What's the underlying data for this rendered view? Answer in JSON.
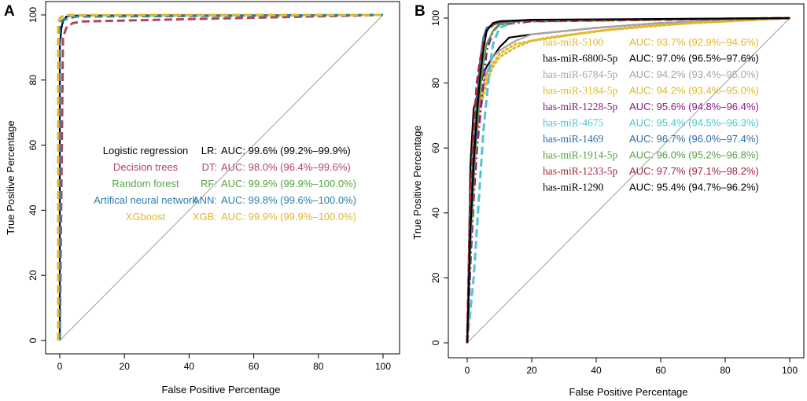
{
  "chart_data": [
    {
      "panel_label": "A",
      "type": "line",
      "xlabel": "False Positive Percentage",
      "ylabel": "True Positive Percentage",
      "xlim": [
        0,
        100
      ],
      "ylim": [
        0,
        100
      ],
      "x_ticks": [
        "0",
        "20",
        "40",
        "60",
        "80",
        "100"
      ],
      "y_ticks": [
        "0",
        "20",
        "40",
        "60",
        "80",
        "100"
      ],
      "legend": {
        "placement": "center",
        "entries": [
          {
            "name": "Logistic regression",
            "abbr": "LR:",
            "auc": "AUC: 99.6% (99.2%–99.9%)",
            "color": "#000000"
          },
          {
            "name": "Decision trees",
            "abbr": "DT:",
            "auc": "AUC: 98.0% (96.4%–99.6%)",
            "color": "#b5455e"
          },
          {
            "name": "Random forest",
            "abbr": "RF:",
            "auc": "AUC: 99.9% (99.9%–100.0%)",
            "color": "#57a345"
          },
          {
            "name": "Artifical neural network",
            "abbr": "ANN:",
            "auc": "AUC: 99.8% (99.6%–100.0%)",
            "color": "#2b7fa8"
          },
          {
            "name": "XGboost",
            "abbr": "XGB:",
            "auc": "AUC: 99.9% (99.9%–100.0%)",
            "color": "#e3b829"
          }
        ]
      },
      "series": [
        {
          "name": "LR",
          "color": "#000000",
          "dash": "solid",
          "x": [
            0,
            0,
            0.5,
            1,
            2,
            4,
            100
          ],
          "y": [
            0,
            90,
            96,
            98,
            99.5,
            99.8,
            100
          ]
        },
        {
          "name": "DT",
          "color": "#b5455e",
          "dash": "dash",
          "x": [
            0,
            1,
            2,
            4,
            7,
            100
          ],
          "y": [
            0,
            93,
            96,
            97.5,
            98,
            100
          ]
        },
        {
          "name": "RF",
          "color": "#57a345",
          "dash": "dash",
          "x": [
            0,
            0,
            1,
            2,
            100
          ],
          "y": [
            0,
            99,
            99.6,
            99.9,
            100
          ]
        },
        {
          "name": "ANN",
          "color": "#2b7fa8",
          "dash": "dash",
          "x": [
            0,
            0,
            1,
            3,
            5,
            100
          ],
          "y": [
            0,
            97,
            98.5,
            99,
            99.5,
            100
          ]
        },
        {
          "name": "XGB",
          "color": "#e3b829",
          "dash": "dash",
          "x": [
            -0.5,
            -0.5,
            0,
            2,
            100
          ],
          "y": [
            0,
            97,
            99,
            99.9,
            100
          ]
        }
      ]
    },
    {
      "panel_label": "B",
      "type": "line",
      "xlabel": "False Positive Percentage",
      "ylabel": "True Positive Percentage",
      "xlim": [
        0,
        100
      ],
      "ylim": [
        0,
        100
      ],
      "x_ticks": [
        "0",
        "20",
        "40",
        "60",
        "80",
        "100"
      ],
      "y_ticks": [
        "0",
        "20",
        "40",
        "60",
        "80",
        "100"
      ],
      "legend": {
        "placement": "top-right",
        "entries": [
          {
            "name": "has-miR-5100",
            "auc": "AUC: 93.7% (92.9%–94.6%)",
            "color": "#e3b829"
          },
          {
            "name": "has-miR-6800-5p",
            "auc": "AUC: 97.0% (96.5%–97.6%)",
            "color": "#000000"
          },
          {
            "name": "has-miR-6784-5p",
            "auc": "AUC: 94.2% (93.4%–95.0%)",
            "color": "#a6a6a6"
          },
          {
            "name": "has-miR-3184-5p",
            "auc": "AUC: 94.2% (93.4%–95.0%)",
            "color": "#e3b829"
          },
          {
            "name": "has-miR-1228-5p",
            "auc": "AUC: 95.6% (94.8%–96.4%)",
            "color": "#8a1a8a"
          },
          {
            "name": "has-miR-4675",
            "auc": "AUC: 95.4% (94.5%–96.3%)",
            "color": "#4fc3d4"
          },
          {
            "name": "has-miR-1469",
            "auc": "AUC: 96.7% (96.0%–97.4%)",
            "color": "#2b6fa8"
          },
          {
            "name": "has-miR-1914-5p",
            "auc": "AUC: 96.0% (95.2%–96.8%)",
            "color": "#57a345"
          },
          {
            "name": "has-miR-1233-5p",
            "auc": "AUC: 97.7% (97.1%–98.2%)",
            "color": "#a3243b"
          },
          {
            "name": "has-miR-1290",
            "auc": "AUC: 95.4% (94.7%–96.2%)",
            "color": "#000000"
          }
        ]
      },
      "series": [
        {
          "name": "has-miR-5100",
          "color": "#e3b829",
          "dash": "dot",
          "x": [
            0,
            1,
            2,
            4,
            6,
            8,
            10,
            15,
            20,
            40,
            60,
            100
          ],
          "y": [
            0,
            40,
            58,
            72,
            80,
            85,
            88,
            91,
            93,
            96,
            98,
            100
          ]
        },
        {
          "name": "has-miR-6800-5p",
          "color": "#000000",
          "dash": "solid",
          "x": [
            0,
            1,
            2,
            4,
            6,
            8,
            10,
            13,
            20,
            40,
            60,
            100
          ],
          "y": [
            0,
            55,
            72,
            80,
            85,
            88,
            91,
            94,
            95,
            97,
            98.5,
            100
          ]
        },
        {
          "name": "has-miR-6784-5p",
          "color": "#a6a6a6",
          "dash": "solid",
          "x": [
            0,
            1,
            2,
            4,
            6,
            8,
            10,
            15,
            20,
            40,
            60,
            100
          ],
          "y": [
            0,
            45,
            62,
            76,
            83,
            88,
            90,
            93,
            95,
            97,
            98.5,
            100
          ]
        },
        {
          "name": "has-miR-3184-5p",
          "color": "#e3b829",
          "dash": "dot",
          "x": [
            0,
            1,
            2,
            4,
            6,
            8,
            10,
            15,
            25,
            45,
            70,
            100
          ],
          "y": [
            0,
            42,
            60,
            74,
            82,
            86,
            89,
            92,
            94,
            96.5,
            98.5,
            100
          ]
        },
        {
          "name": "has-miR-1228-5p",
          "color": "#8a1a8a",
          "dash": "dashdot",
          "x": [
            0,
            1,
            2,
            3,
            4,
            5,
            6,
            8,
            10,
            20,
            100
          ],
          "y": [
            0,
            25,
            45,
            60,
            70,
            80,
            90,
            96,
            98,
            99,
            100
          ]
        },
        {
          "name": "has-miR-4675",
          "color": "#4fc3d4",
          "dash": "dash",
          "x": [
            0,
            2,
            3,
            4,
            5,
            6,
            7,
            8,
            10,
            15,
            100
          ],
          "y": [
            0,
            20,
            35,
            50,
            65,
            75,
            85,
            92,
            97,
            99,
            100
          ]
        },
        {
          "name": "has-miR-1469",
          "color": "#2b6fa8",
          "dash": "solid",
          "x": [
            0,
            1,
            2,
            3,
            4,
            5,
            6,
            8,
            12,
            100
          ],
          "y": [
            0,
            40,
            60,
            75,
            87,
            94,
            97,
            98,
            99,
            100
          ]
        },
        {
          "name": "has-miR-1914-5p",
          "color": "#57a345",
          "dash": "solid",
          "x": [
            0,
            1,
            2,
            3,
            4,
            5,
            6,
            8,
            10,
            15,
            100
          ],
          "y": [
            0,
            30,
            50,
            65,
            78,
            86,
            92,
            96,
            98,
            99,
            100
          ]
        },
        {
          "name": "has-miR-1233-5p",
          "color": "#a3243b",
          "dash": "dash",
          "x": [
            0,
            1,
            2,
            3,
            4,
            5,
            6,
            8,
            10,
            100
          ],
          "y": [
            0,
            45,
            65,
            80,
            87,
            92,
            96,
            98,
            99,
            100
          ]
        },
        {
          "name": "has-miR-1290",
          "color": "#000000",
          "dash": "solid",
          "x": [
            0,
            1,
            2,
            3,
            4,
            5,
            6,
            8,
            10,
            20,
            100
          ],
          "y": [
            0,
            35,
            55,
            70,
            82,
            90,
            96,
            98.5,
            99,
            99.5,
            100
          ]
        }
      ]
    }
  ]
}
